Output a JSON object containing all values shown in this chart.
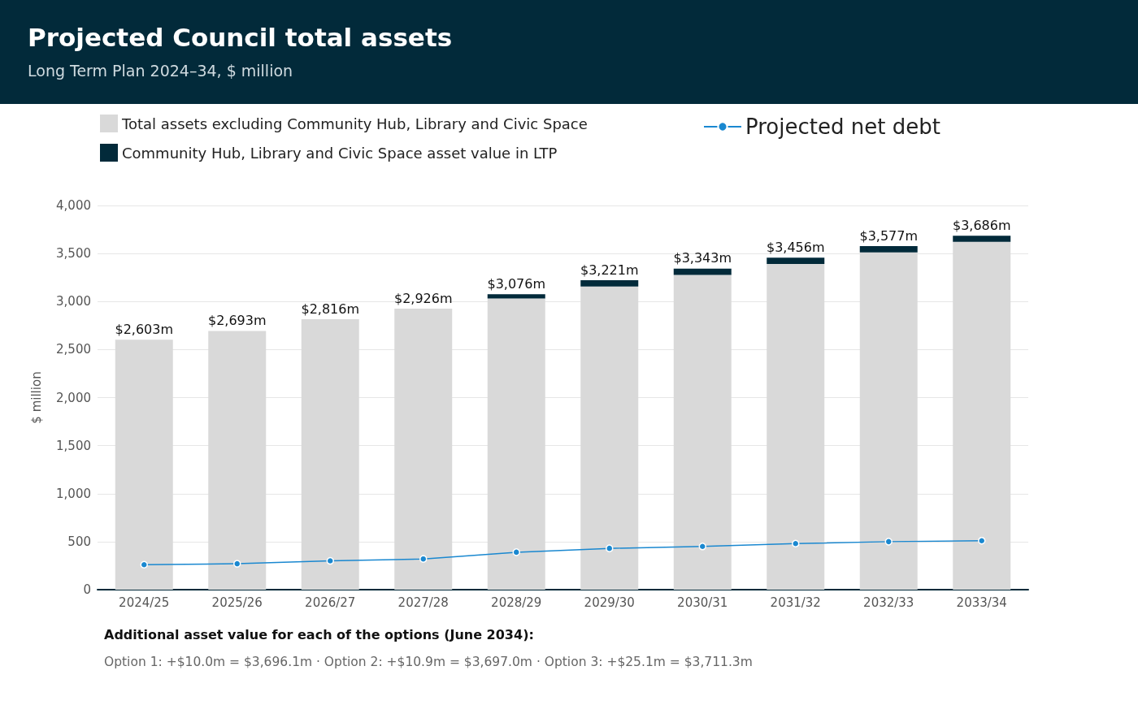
{
  "chart_data": {
    "type": "bar",
    "title": "Projected Council total assets",
    "subtitle": "Long Term Plan 2024–34, $ million",
    "ylabel": "$ million",
    "categories": [
      "2024/25",
      "2025/26",
      "2026/27",
      "2027/28",
      "2028/29",
      "2029/30",
      "2030/31",
      "2031/32",
      "2032/33",
      "2033/34"
    ],
    "stacked": true,
    "series": [
      {
        "name": "Total assets excluding Community Hub, Library and Civic Space",
        "color": "#d9d9d9",
        "values": [
          2603,
          2693,
          2816,
          2926,
          3031,
          3156,
          3278,
          3391,
          3512,
          3621
        ]
      },
      {
        "name": "Community Hub, Library and Civic Space asset value in LTP",
        "color": "#022a3a",
        "values": [
          0,
          0,
          0,
          0,
          45,
          65,
          65,
          65,
          65,
          65
        ]
      },
      {
        "name": "Projected net debt",
        "type": "line",
        "color": "#1a88d0",
        "marker": "circle",
        "values": [
          260,
          270,
          300,
          320,
          390,
          430,
          450,
          480,
          500,
          510
        ]
      }
    ],
    "totals": [
      "$2,603m",
      "$2,693m",
      "$2,816m",
      "$2,926m",
      "$3,076m",
      "$3,221m",
      "$3,343m",
      "$3,456m",
      "$3,577m",
      "$3,686m"
    ],
    "ylim": [
      0,
      4000
    ],
    "yticks": [
      0,
      500,
      {
        "value": 1000,
        "label": "1,000"
      },
      {
        "value": 1500,
        "label": "1,500"
      },
      {
        "value": 2000,
        "label": "2,000"
      },
      {
        "value": 2500,
        "label": "2,500"
      },
      {
        "value": 3000,
        "label": "3,000"
      },
      {
        "value": 3500,
        "label": "3,500"
      },
      {
        "value": 4000,
        "label": "4,000"
      }
    ],
    "grid": "y",
    "legend": "top",
    "annotations": [
      "Additional asset value for each of the options (June 2034):",
      "Option 1: +$10.0m = $3,696.1m  ·  Option 2: +$10.9m = $3,697.0m  ·  Option 3: +$25.1m = $3,711.3m"
    ]
  }
}
